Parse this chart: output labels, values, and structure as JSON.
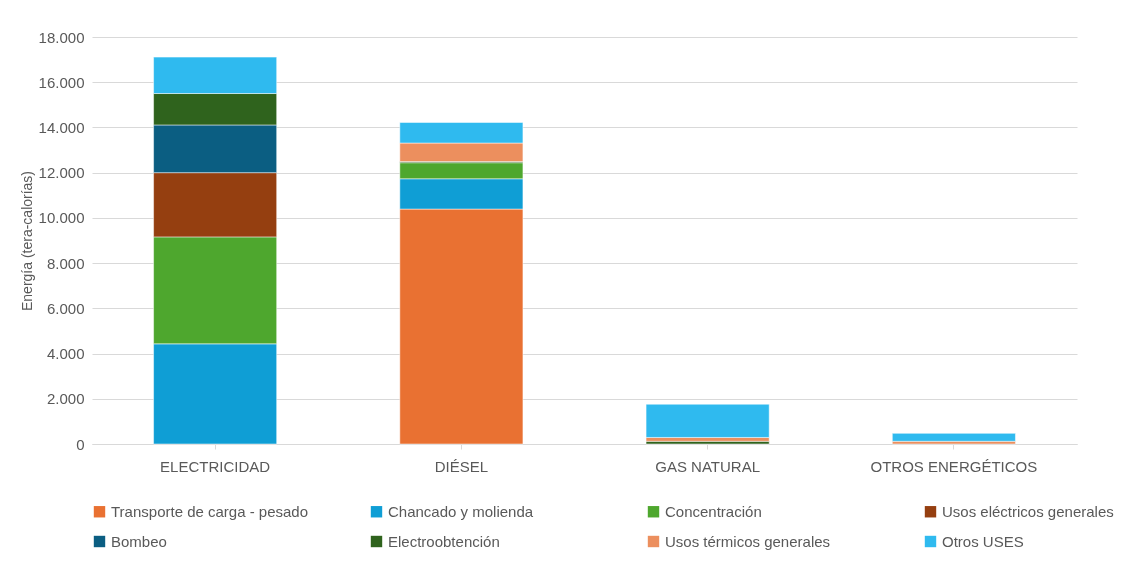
{
  "chart_data": {
    "type": "bar",
    "stacked": true,
    "ylabel": "Energía (tera-calorías)",
    "categories": [
      "ELECTRICIDAD",
      "DIÉSEL",
      "GAS NATURAL",
      "OTROS ENERGÉTICOS"
    ],
    "series": [
      {
        "name": "Transporte de carga - pesado",
        "color": "#e97132",
        "values": [
          null,
          10390,
          null,
          null
        ]
      },
      {
        "name": "Chancado y molienda",
        "color": "#0f9ed5",
        "values": [
          4430,
          1340,
          null,
          null
        ]
      },
      {
        "name": "Concentración",
        "color": "#4ea72e",
        "values": [
          4730,
          710,
          null,
          null
        ]
      },
      {
        "name": "Usos eléctricos generales",
        "color": "#953f10",
        "values": [
          2840,
          null,
          null,
          null
        ]
      },
      {
        "name": "Bombeo",
        "color": "#0b5e82",
        "values": [
          2110,
          null,
          null,
          null
        ]
      },
      {
        "name": "Electroobtención",
        "color": "#2f631d",
        "values": [
          1390,
          50,
          120,
          null
        ]
      },
      {
        "name": "Usos térmicos generales",
        "color": "#ec8f5e",
        "values": [
          null,
          820,
          170,
          120
        ]
      },
      {
        "name": "Otros USES",
        "color": "#2fbaef",
        "values": [
          1610,
          910,
          1470,
          350
        ]
      }
    ],
    "ylim": [
      0,
      18000
    ],
    "yticks": [
      {
        "value": 0,
        "label": "0"
      },
      {
        "value": 2000,
        "label": "2.000"
      },
      {
        "value": 4000,
        "label": "4.000"
      },
      {
        "value": 6000,
        "label": "6.000"
      },
      {
        "value": 8000,
        "label": "8.000"
      },
      {
        "value": 10000,
        "label": "10.000"
      },
      {
        "value": 12000,
        "label": "12.000"
      },
      {
        "value": 14000,
        "label": "14.000"
      },
      {
        "value": 16000,
        "label": "16.000"
      },
      {
        "value": 18000,
        "label": "18.000"
      }
    ],
    "grid": "y",
    "legend": "bottom"
  }
}
